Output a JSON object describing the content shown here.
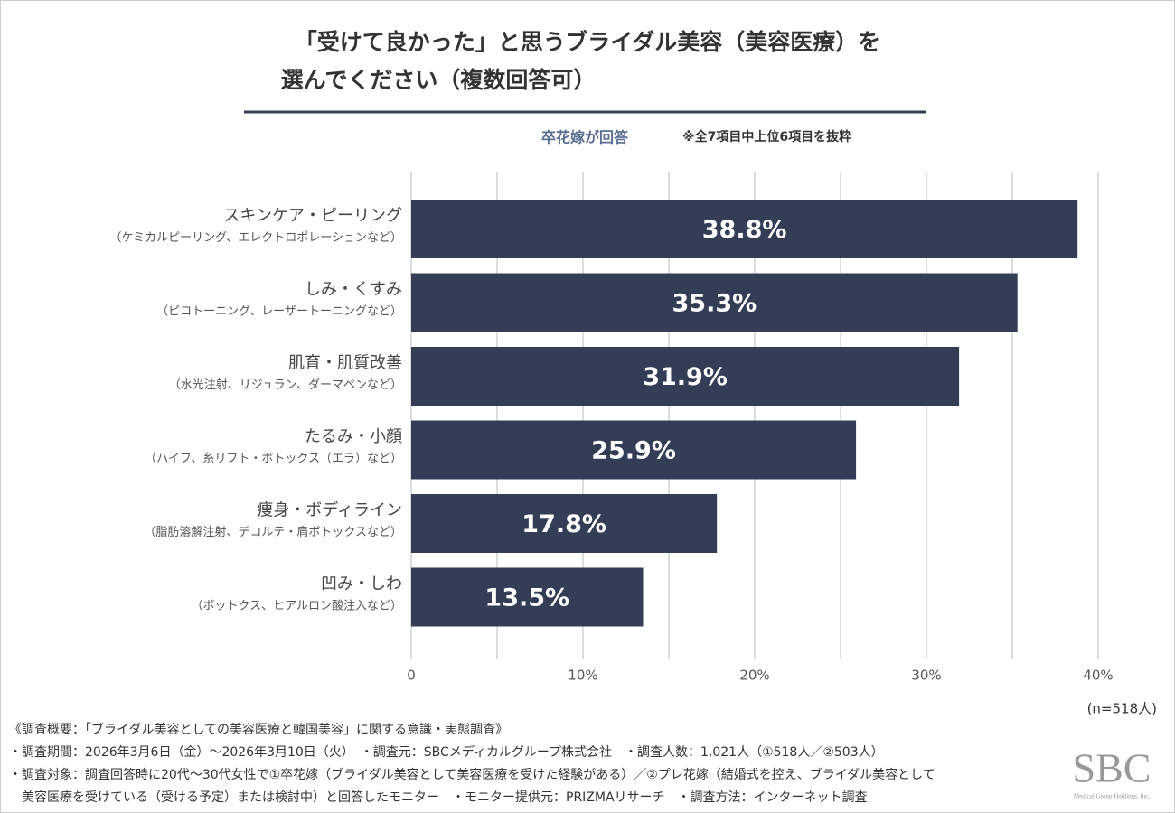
{
  "chart_data": {
    "type": "hbar",
    "title": [
      "「受けて良かった」と思うブライダル美容（美容医療）を",
      "選んでください（複数回答可）"
    ],
    "subtitle": "卒花嫁が回答",
    "note": "※全7項目中上位6項目を抜粋",
    "sample_size": "(n=518人)",
    "categories": [
      "スキンケア・ピーリング",
      "しみ・くすみ",
      "肌育・肌質改善",
      "たるみ・小顔",
      "痩身・ボディライン",
      "凹み・しわ"
    ],
    "category_notes": [
      "（ケミカルピーリング、エレクトロポレーションなど）",
      "（ピコトーニング、レーザートーニングなど）",
      "（水光注射、リジュラン、ダーマペンなど）",
      "（ハイフ、糸リフト・ボトックス（エラ）など）",
      "（脂肪溶解注射、デコルテ・肩ボトックスなど）",
      "（ボットクス、ヒアルロン酸注入など）"
    ],
    "values": [
      38.8,
      35.3,
      31.9,
      25.9,
      17.8,
      13.5
    ],
    "value_labels": [
      "38.8%",
      "35.3%",
      "31.9%",
      "25.9%",
      "17.8%",
      "13.5%"
    ],
    "color": "#333d55",
    "xlim": [
      0,
      40
    ],
    "xticks": [
      0,
      {
        "value": 10,
        "label": "10%"
      },
      {
        "value": 20,
        "label": "20%"
      },
      {
        "value": 30,
        "label": "30%"
      },
      {
        "value": 40,
        "label": "40%"
      }
    ],
    "xgrid_minor": [
      5,
      15,
      25,
      35
    ],
    "grid": true
  },
  "footer": [
    "《調査概要：「ブライダル美容としての美容医療と韓国美容」に関する意識・実態調査》",
    "・調査期間：2026年3月6日（金）～2026年3月10日（火）　・調査元：SBCメディカルグループ株式会社　・調査人数：1,021人（①518人／②503人）",
    "・調査対象：調査回答時に20代～30代女性で①卒花嫁（ブライダル美容として美容医療を受けた経験がある）／②プレ花嫁（結婚式を控え、ブライダル美容として",
    "　美容医療を受けている（受ける予定）または検討中）と回答したモニター　・モニター提供元：PRIZMAリサーチ　・調査方法：インターネット調査"
  ],
  "logo": {
    "text": "SBC",
    "caption": "Medical Group Holdings, Inc."
  }
}
